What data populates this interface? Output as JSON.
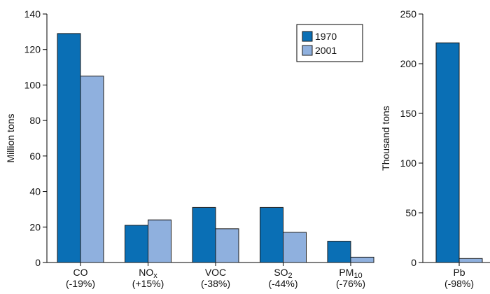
{
  "colors": {
    "s1970": "#0a6fb5",
    "s2001": "#8fb0de",
    "axis": "#000000",
    "bar_stroke": "#1a1a1a"
  },
  "legend": {
    "placement": "top-right",
    "items": [
      "1970",
      "2001"
    ]
  },
  "chart_data": [
    {
      "type": "bar",
      "ylabel": "Million tons",
      "ylim": [
        0,
        140
      ],
      "yticks": [
        0,
        20,
        40,
        60,
        80,
        100,
        120,
        140
      ],
      "grid": false,
      "categories": [
        {
          "name": "CO",
          "sub": "",
          "change": "(-19%)"
        },
        {
          "name": "NO",
          "sub": "x",
          "change": "(+15%)"
        },
        {
          "name": "VOC",
          "sub": "",
          "change": "(-38%)"
        },
        {
          "name": "SO",
          "sub": "2",
          "change": "(-44%)"
        },
        {
          "name": "PM",
          "sub": "10",
          "change": "(-76%)"
        }
      ],
      "series": [
        {
          "name": "1970",
          "values": [
            129,
            21,
            31,
            31,
            12
          ]
        },
        {
          "name": "2001",
          "values": [
            105,
            24,
            19,
            17,
            3
          ]
        }
      ]
    },
    {
      "type": "bar",
      "ylabel": "Thousand tons",
      "ylim": [
        0,
        250
      ],
      "yticks": [
        0,
        50,
        100,
        150,
        200,
        250
      ],
      "grid": false,
      "categories": [
        {
          "name": "Pb",
          "sub": "",
          "change": "(-98%)"
        }
      ],
      "series": [
        {
          "name": "1970",
          "values": [
            221
          ]
        },
        {
          "name": "2001",
          "values": [
            4
          ]
        }
      ]
    }
  ]
}
